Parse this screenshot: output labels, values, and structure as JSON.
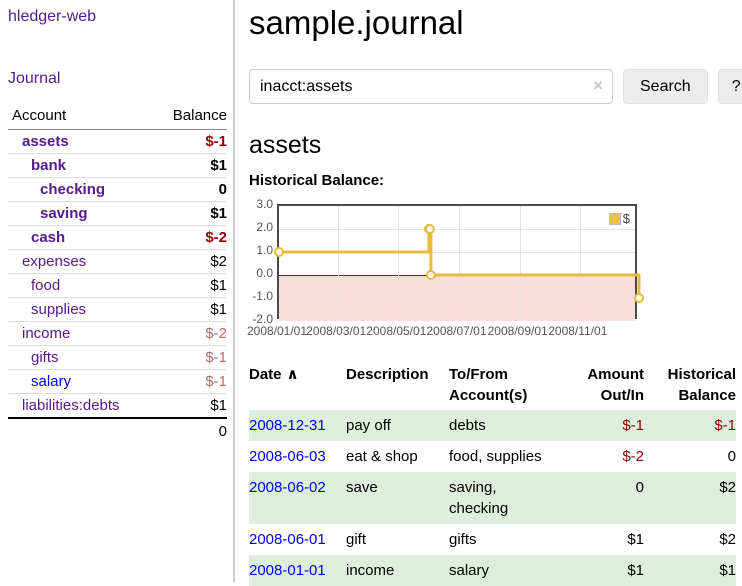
{
  "colors": {
    "link_purple": "#551a8b",
    "link_blue": "#0000ee",
    "negative_strong": "#8b0000",
    "negative_soft": "#c06868",
    "row_green": "#ddeedd",
    "chart_line": "#e9bb3a",
    "chart_negative_fill": "#fbdddd"
  },
  "sidebar": {
    "app_title": "hledger-web",
    "journal_link": "Journal",
    "accounts": {
      "header_account": "Account",
      "header_balance": "Balance",
      "rows": [
        {
          "name": "assets",
          "depth": 0,
          "bold": true,
          "color": "purple",
          "balance": "$-1",
          "balance_tone": "neg_strong"
        },
        {
          "name": "bank",
          "depth": 1,
          "bold": true,
          "color": "purple",
          "balance": "$1",
          "balance_tone": "pos"
        },
        {
          "name": "checking",
          "depth": 2,
          "bold": true,
          "color": "purple",
          "balance": "0",
          "balance_tone": "pos"
        },
        {
          "name": "saving",
          "depth": 2,
          "bold": true,
          "color": "purple",
          "balance": "$1",
          "balance_tone": "pos"
        },
        {
          "name": "cash",
          "depth": 1,
          "bold": true,
          "color": "purple",
          "balance": "$-2",
          "balance_tone": "neg_strong"
        },
        {
          "name": "expenses",
          "depth": 0,
          "bold": false,
          "color": "purple",
          "balance": "$2",
          "balance_tone": "pos"
        },
        {
          "name": "food",
          "depth": 1,
          "bold": false,
          "color": "purple",
          "balance": "$1",
          "balance_tone": "pos"
        },
        {
          "name": "supplies",
          "depth": 1,
          "bold": false,
          "color": "purple",
          "balance": "$1",
          "balance_tone": "pos"
        },
        {
          "name": "income",
          "depth": 0,
          "bold": false,
          "color": "purple",
          "balance": "$-2",
          "balance_tone": "neg_soft"
        },
        {
          "name": "gifts",
          "depth": 1,
          "bold": false,
          "color": "purple",
          "balance": "$-1",
          "balance_tone": "neg_soft"
        },
        {
          "name": "salary",
          "depth": 1,
          "bold": false,
          "color": "blue",
          "balance": "$-1",
          "balance_tone": "neg_soft"
        },
        {
          "name": "liabilities:debts",
          "depth": 0,
          "bold": false,
          "color": "purple",
          "balance": "$1",
          "balance_tone": "pos"
        }
      ],
      "total": "0"
    }
  },
  "main": {
    "title": "sample.journal",
    "search": {
      "value": "inacct:assets",
      "clear_icon": "×",
      "search_button": "Search",
      "help_button": "?"
    },
    "account_heading": "assets",
    "section_label": "Historical Balance:",
    "register": {
      "headers": {
        "date": "Date",
        "description": "Description",
        "tofrom": "To/From Account(s)",
        "amount": "Amount Out/In",
        "balance": "Historical Balance"
      },
      "sort_icon": "∧",
      "rows": [
        {
          "date": "2008-12-31",
          "description": "pay off",
          "accounts": "debts",
          "amount": "$-1",
          "amount_neg": true,
          "balance": "$-1",
          "balance_neg": true
        },
        {
          "date": "2008-06-03",
          "description": "eat & shop",
          "accounts": "food, supplies",
          "amount": "$-2",
          "amount_neg": true,
          "balance": "0",
          "balance_neg": false
        },
        {
          "date": "2008-06-02",
          "description": "save",
          "accounts": "saving, checking",
          "amount": "0",
          "amount_neg": false,
          "balance": "$2",
          "balance_neg": false
        },
        {
          "date": "2008-06-01",
          "description": "gift",
          "accounts": "gifts",
          "amount": "$1",
          "amount_neg": false,
          "balance": "$2",
          "balance_neg": false
        },
        {
          "date": "2008-01-01",
          "description": "income",
          "accounts": "salary",
          "amount": "$1",
          "amount_neg": false,
          "balance": "$1",
          "balance_neg": false
        }
      ]
    }
  },
  "chart_data": {
    "type": "line",
    "step": true,
    "title": "Historical Balance",
    "x_range": [
      "2008-01-01",
      "2008-12-31"
    ],
    "x_ticks": [
      "2008/01/01",
      "2008/03/01",
      "2008/05/01",
      "2008/07/01",
      "2008/09/01",
      "2008/11/01"
    ],
    "y_ticks": [
      3.0,
      2.0,
      1.0,
      0.0,
      -1.0,
      -2.0
    ],
    "ylim": [
      -2,
      3
    ],
    "grid": true,
    "legend": {
      "label": "$",
      "position": "top-right",
      "swatch_color": "#edc240"
    },
    "series": [
      {
        "name": "$",
        "color": "#e9bb3a",
        "points": [
          {
            "date": "2008-01-01",
            "value": 1
          },
          {
            "date": "2008-06-01",
            "value": 2
          },
          {
            "date": "2008-06-02",
            "value": 2
          },
          {
            "date": "2008-06-03",
            "value": 0
          },
          {
            "date": "2008-12-31",
            "value": -1
          }
        ]
      }
    ],
    "negative_region": {
      "below": 0,
      "fill": "#fbdddd",
      "zero_line_color": "#8b0000"
    }
  }
}
